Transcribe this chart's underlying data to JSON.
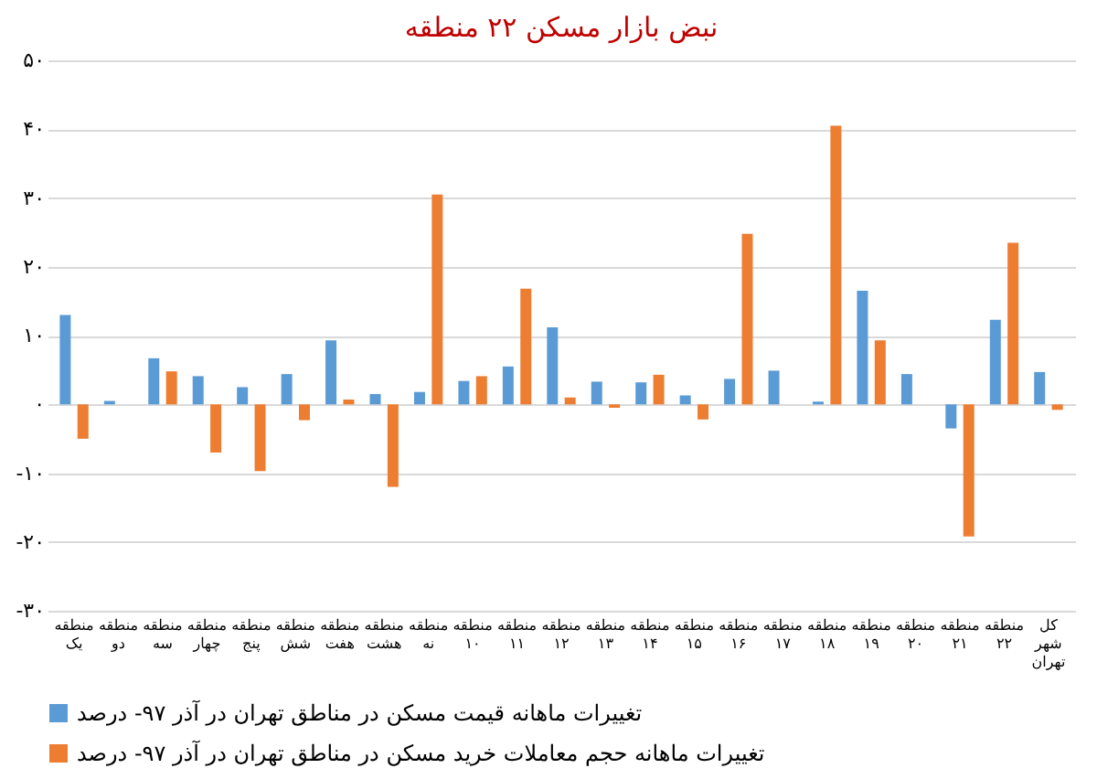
{
  "chart_data": {
    "type": "bar",
    "title": "نبض بازار مسکن ۲۲ منطقه",
    "categories": [
      "منطقه یک",
      "منطقه دو",
      "منطقه سه",
      "منطقه چهار",
      "منطقه پنج",
      "منطقه شش",
      "منطقه هفت",
      "منطقه هشت",
      "منطقه نه",
      "منطقه ۱۰",
      "منطقه ۱۱",
      "منطقه ۱۲",
      "منطقه ۱۳",
      "منطقه ۱۴",
      "منطقه ۱۵",
      "منطقه ۱۶",
      "منطقه ۱۷",
      "منطقه ۱۸",
      "منطقه ۱۹",
      "منطقه ۲۰",
      "منطقه ۲۱",
      "منطقه ۲۲",
      "کل شهر تهران"
    ],
    "series": [
      {
        "name": "تغییرات ماهانه قیمت مسکن در مناطق تهران در آذر ۹۷- درصد",
        "color": "#5b9bd5",
        "values": [
          13,
          0.5,
          6.7,
          4.1,
          2.5,
          4.4,
          9.3,
          1.5,
          1.8,
          3.4,
          5.5,
          11.2,
          3.3,
          3.2,
          1.3,
          3.7,
          4.9,
          0.4,
          16.5,
          4.4,
          -3.5,
          12.3,
          4.7
        ]
      },
      {
        "name": "تغییرات ماهانه حجم معاملات خرید مسکن در مناطق تهران در آذر ۹۷- درصد",
        "color": "#ed7d31",
        "values": [
          -5,
          0,
          4.8,
          -7,
          -9.7,
          -2.3,
          0.7,
          -12,
          30.5,
          4.1,
          16.8,
          1.0,
          -0.5,
          4.3,
          -2.2,
          24.8,
          0,
          40.5,
          9.3,
          0,
          -19.2,
          23.5,
          -0.8
        ]
      }
    ],
    "ylim": [
      -30,
      50
    ],
    "yticks": [
      {
        "value": -30,
        "label": "-۳۰"
      },
      {
        "value": -20,
        "label": "-۲۰"
      },
      {
        "value": -10,
        "label": "-۱۰"
      },
      {
        "value": 0,
        "label": "۰"
      },
      {
        "value": 10,
        "label": "۱۰"
      },
      {
        "value": 20,
        "label": "۲۰"
      },
      {
        "value": 30,
        "label": "۳۰"
      },
      {
        "value": 40,
        "label": "۴۰"
      },
      {
        "value": 50,
        "label": "۵۰"
      }
    ],
    "grid": "y",
    "legend": "bottom"
  }
}
